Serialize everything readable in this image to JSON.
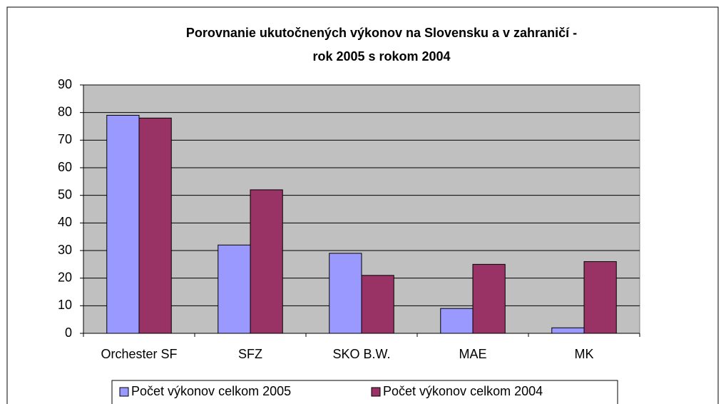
{
  "chart_data": {
    "type": "bar",
    "title": [
      "Porovnanie ukutočnených výkonov na Slovensku a v zahraničí -",
      "rok 2005 s rokom 2004"
    ],
    "categories": [
      "Orchester SF",
      "SFZ",
      "SKO B.W.",
      "MAE",
      "MK"
    ],
    "series": [
      {
        "name": "Počet výkonov celkom 2005",
        "color": "#9999ff",
        "values": [
          79,
          32,
          29,
          9,
          2
        ]
      },
      {
        "name": "Počet výkonov celkom 2004",
        "color": "#993366",
        "values": [
          78,
          52,
          21,
          25,
          26
        ]
      }
    ],
    "ylim": [
      0,
      90
    ],
    "yticks": [
      0,
      10,
      20,
      30,
      40,
      50,
      60,
      70,
      80,
      90
    ],
    "grid": true,
    "legend": "bottom"
  }
}
